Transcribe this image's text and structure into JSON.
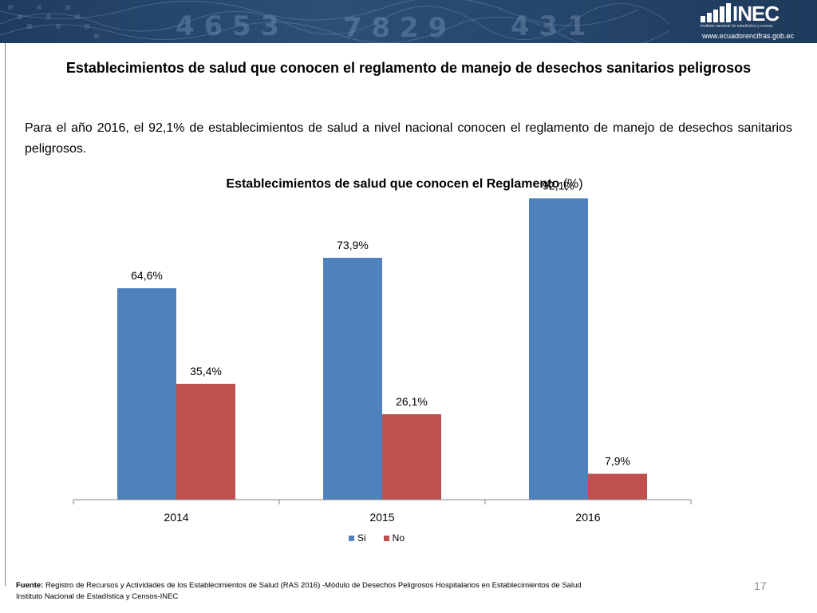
{
  "header": {
    "logo_brand": "INEC",
    "logo_tagline": "Instituto nacional de estadística y censos",
    "logo_url": "www.ecuadorencifras.gob.ec"
  },
  "slide": {
    "title": "Establecimientos de salud que conocen el reglamento de manejo de desechos sanitarios peligrosos",
    "intro": "Para el año 2016, el 92,1% de establecimientos de salud a nivel nacional conocen el reglamento de manejo de desechos sanitarios peligrosos.",
    "page_number": "17"
  },
  "chart_data": {
    "type": "bar",
    "title_bold": "Establecimientos de salud que conocen el Reglamento",
    "title_suffix": " (%)",
    "categories": [
      "2014",
      "2015",
      "2016"
    ],
    "series": [
      {
        "name": "Si",
        "values": [
          64.6,
          73.9,
          92.1
        ],
        "labels": [
          "64,6%",
          "73,9%",
          "92,1%"
        ],
        "color": "#4f81bd"
      },
      {
        "name": "No",
        "values": [
          35.4,
          26.1,
          7.9
        ],
        "labels": [
          "35,4%",
          "26,1%",
          "7,9%"
        ],
        "color": "#c0504d"
      }
    ],
    "ylim": [
      0,
      100
    ],
    "grid": false,
    "legend": "bottom"
  },
  "footer": {
    "source_label": "Fuente:",
    "source_text": " Registro de Recursos y Actividades de los Establecimientos de Salud (RAS 2016) -Módulo de Desechos Peligrosos Hospitalarios en Establecimientos de Salud",
    "institution": "Instituto Nacional de Estadística y Censos-INEC"
  }
}
